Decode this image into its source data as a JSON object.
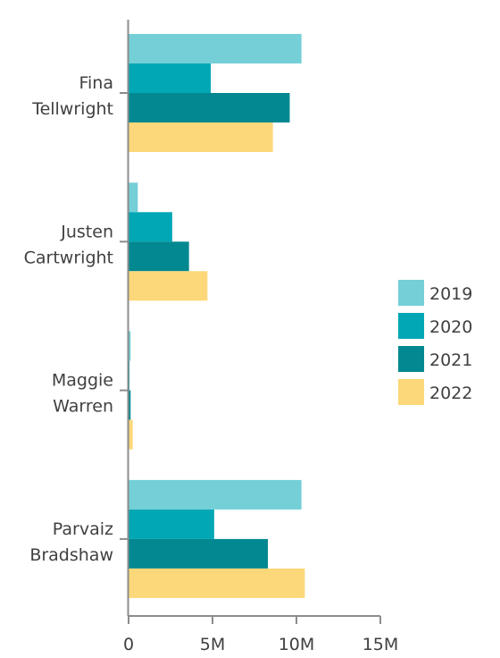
{
  "chart_data": {
    "type": "bar",
    "orientation": "horizontal",
    "categories": [
      [
        "Fina",
        "Tellwright"
      ],
      [
        "Justen",
        "Cartwright"
      ],
      [
        "Maggie",
        "Warren"
      ],
      [
        "Parvaiz",
        "Bradshaw"
      ]
    ],
    "series": [
      {
        "name": "2019",
        "color": "#74cfd6",
        "values": [
          10.3,
          0.55,
          0.12,
          10.3
        ]
      },
      {
        "name": "2020",
        "color": "#01a7b5",
        "values": [
          4.9,
          2.6,
          0.05,
          5.1
        ]
      },
      {
        "name": "2021",
        "color": "#018890",
        "values": [
          9.6,
          3.6,
          0.12,
          8.3
        ]
      },
      {
        "name": "2022",
        "color": "#fdd87a",
        "values": [
          8.6,
          4.7,
          0.25,
          10.5
        ]
      }
    ],
    "xaxis": {
      "range": [
        0,
        15
      ],
      "ticks": [
        0,
        5,
        10,
        15
      ],
      "tick_labels": [
        "0",
        "5M",
        "10M",
        "15M"
      ]
    },
    "legend_position": "right",
    "grid": false
  }
}
